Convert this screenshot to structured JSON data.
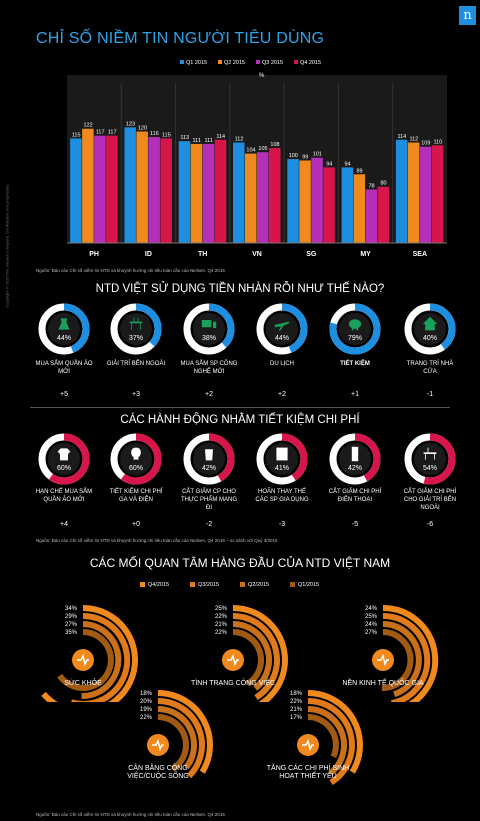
{
  "logo": "n",
  "title": "CHỈ SỐ NIỀM TIN NGƯỜI TIÊU DÙNG",
  "side_credit": "Copyright © 2016 The Nielsen Company. Confidential and proprietary.",
  "chart_data": [
    {
      "type": "bar",
      "categories": [
        "PH",
        "ID",
        "TH",
        "VN",
        "SG",
        "MY",
        "SEA"
      ],
      "series": [
        {
          "name": "Q1 2015",
          "values": [
            115,
            123,
            113,
            112,
            100,
            94,
            114
          ]
        },
        {
          "name": "Q2 2015",
          "values": [
            122,
            120,
            111,
            104,
            99,
            89,
            112
          ]
        },
        {
          "name": "Q3 2015",
          "values": [
            117,
            116,
            111,
            105,
            101,
            78,
            109
          ]
        },
        {
          "name": "Q4 2015",
          "values": [
            117,
            115,
            114,
            108,
            94,
            80,
            110
          ]
        }
      ],
      "colors": [
        "#1e8fe0",
        "#f08a1e",
        "#b52fb8",
        "#d8154b"
      ],
      "unit_label": "%",
      "ylim": [
        0,
        130
      ]
    },
    {
      "type": "pie",
      "title": "NTD VIỆT SỬ DỤNG TIỀN NHÀN RỖI NHƯ THẾ NÀO?",
      "categories": [
        "MUA SẮM QUẦN ÁO MỚI",
        "GIẢI TRÍ BÊN NGOÀI",
        "MUA SẮM SP CÔNG NGHỆ MỚI",
        "DU LỊCH",
        "TIẾT KIỆM",
        "TRANG TRÍ NHÀ CỬA"
      ],
      "values": [
        44,
        37,
        38,
        44,
        79,
        40
      ],
      "changes": [
        "+5",
        "+3",
        "+2",
        "+2",
        "+1",
        "-1"
      ]
    },
    {
      "type": "pie",
      "title": "CÁC HÀNH ĐỘNG NHẰM TIẾT KIỆM CHI PHÍ",
      "categories": [
        "HẠN CHẾ MUA SẮM QUẦN ÁO MỚI",
        "TIẾT KIỆM CHI PHÍ GA VÀ ĐIỆN",
        "CẮT GIẢM CP CHO THỰC PHẨM MANG ĐI",
        "HOÃN THAY THẾ CÁC SP GIA DỤNG",
        "CẮT GIẢM CHI PHÍ ĐIỆN THOẠI",
        "CẮT GIẢM CHI PHÍ CHO GIẢI TRÍ BÊN NGOÀI"
      ],
      "values": [
        60,
        60,
        42,
        41,
        42,
        54
      ],
      "changes": [
        "+4",
        "+0",
        "-2",
        "-3",
        "-5",
        "-6"
      ]
    },
    {
      "type": "bar",
      "title": "CÁC MỐI QUAN TÂM HÀNG ĐẦU CỦA NTD VIỆT NAM",
      "legend": [
        "Q4/2015",
        "Q3/2015",
        "Q2/2015",
        "Q1/2015"
      ],
      "groups": [
        {
          "label": "SỨC KHỎE",
          "values": [
            34,
            29,
            27,
            35
          ]
        },
        {
          "label": "TÌNH TRẠNG CÔNG VIỆC",
          "values": [
            25,
            22,
            21,
            22
          ]
        },
        {
          "label": "NỀN KINH TẾ QUỐC GIA",
          "values": [
            24,
            25,
            24,
            27
          ]
        },
        {
          "label": "CÂN BẰNG CÔNG VIỆC/CUỘC SỐNG",
          "values": [
            18,
            20,
            19,
            22
          ]
        },
        {
          "label": "TĂNG CÁC CHI PHÍ SINH HOẠT THIẾT YẾU",
          "values": [
            18,
            22,
            21,
            17
          ]
        }
      ]
    }
  ],
  "source1": "Nguồn: Báo cáo Chỉ số niềm tin NTD và khuynh hướng chi tiêu toàn cầu của Nielsen, Q4 2015",
  "source2": "Nguồn: Báo cáo Chỉ số niềm tin NTD và khuynh hướng chi tiêu toàn cầu của Nielsen, Q4 2015 – so sánh với Quý 3/2015",
  "source3": "Nguồn: Báo cáo Chỉ số niềm tin NTD và khuynh hướng chi tiêu toàn cầu của Nielsen, Q4 2015"
}
